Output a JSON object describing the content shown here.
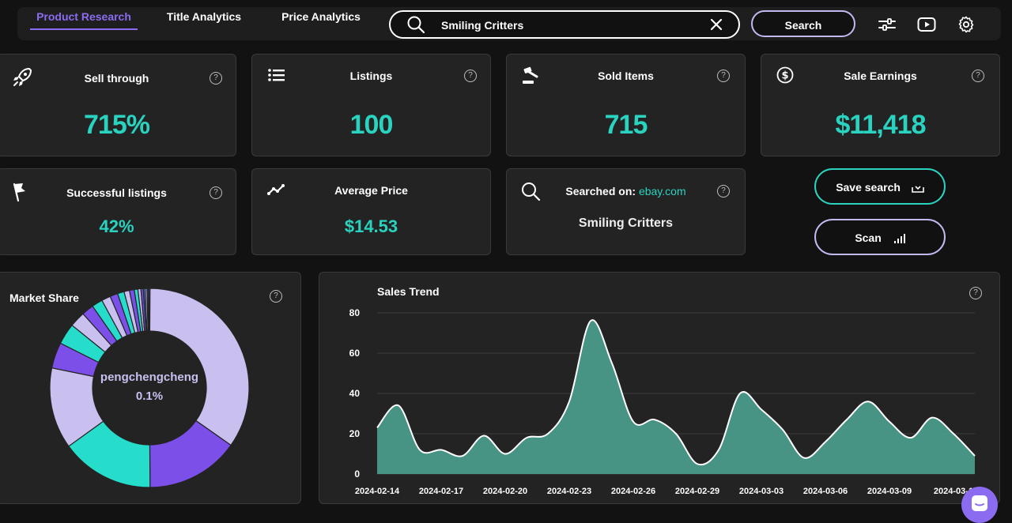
{
  "nav": {
    "tabs": [
      {
        "label": "Product Research",
        "active": true
      },
      {
        "label": "Title Analytics",
        "active": false
      },
      {
        "label": "Price Analytics",
        "active": false
      }
    ],
    "search_value": "Smiling Critters",
    "search_button": "Search"
  },
  "stats": {
    "sell_through": {
      "label": "Sell through",
      "value": "715%"
    },
    "listings": {
      "label": "Listings",
      "value": "100"
    },
    "sold_items": {
      "label": "Sold Items",
      "value": "715"
    },
    "sale_earnings": {
      "label": "Sale Earnings",
      "value": "$11,418"
    },
    "successful_listings": {
      "label": "Successful listings",
      "value": "42%"
    },
    "average_price": {
      "label": "Average Price",
      "value": "$14.53"
    },
    "searched_on": {
      "label": "Searched on:",
      "site": "ebay.com",
      "query": "Smiling Critters"
    }
  },
  "actions": {
    "save_search": "Save search",
    "scan": "Scan"
  },
  "market_share": {
    "title": "Market Share",
    "center_label": "pengchengcheng",
    "center_value": "0.1%"
  },
  "colors": {
    "accent": "#2ad3c0",
    "purple": "#8b6cf0",
    "lavender": "#c4b8ef",
    "area": "#4a9a8a"
  },
  "chart_data": [
    {
      "type": "pie",
      "title": "Market Share",
      "slices": [
        {
          "label": "pengchengcheng",
          "value": 0.1
        },
        {
          "label": "",
          "value": 35.5,
          "color": "#c9c0ef"
        },
        {
          "label": "",
          "value": 15.5,
          "color": "#7b4fe8"
        },
        {
          "label": "",
          "value": 15.5,
          "color": "#26dccb"
        },
        {
          "label": "",
          "value": 13.5,
          "color": "#c9c0ef"
        },
        {
          "label": "",
          "value": 4.3,
          "color": "#7b4fe8"
        },
        {
          "label": "",
          "value": 3.5,
          "color": "#26dccb"
        },
        {
          "label": "",
          "value": 2.6,
          "color": "#c9c0ef"
        },
        {
          "label": "",
          "value": 2.0,
          "color": "#7b4fe8"
        },
        {
          "label": "",
          "value": 1.8,
          "color": "#26dccb"
        },
        {
          "label": "",
          "value": 1.5,
          "color": "#c9c0ef"
        },
        {
          "label": "",
          "value": 1.3,
          "color": "#7b4fe8"
        },
        {
          "label": "",
          "value": 1.1,
          "color": "#26dccb"
        },
        {
          "label": "",
          "value": 0.9,
          "color": "#c9c0ef"
        },
        {
          "label": "",
          "value": 0.8,
          "color": "#7b4fe8"
        },
        {
          "label": "",
          "value": 0.6,
          "color": "#26dccb"
        },
        {
          "label": "",
          "value": 0.5,
          "color": "#c9c0ef"
        },
        {
          "label": "",
          "value": 0.4,
          "color": "#7b4fe8"
        },
        {
          "label": "",
          "value": 0.3,
          "color": "#3b7bd4"
        },
        {
          "label": "",
          "value": 0.3,
          "color": "#c9c0ef"
        },
        {
          "label": "",
          "value": 0.2,
          "color": "#7b4fe8"
        },
        {
          "label": "",
          "value": 0.2,
          "color": "#3b7bd4"
        }
      ]
    },
    {
      "type": "area",
      "title": "Sales Trend",
      "ylim": [
        0,
        80
      ],
      "yticks": [
        0,
        20,
        40,
        60,
        80
      ],
      "x_labels": [
        "2024-02-14",
        "2024-02-17",
        "2024-02-20",
        "2024-02-23",
        "2024-02-26",
        "2024-02-29",
        "2024-03-03",
        "2024-03-06",
        "2024-03-09",
        "2024-03-1"
      ],
      "x": [
        "2024-02-14",
        "2024-02-15",
        "2024-02-16",
        "2024-02-17",
        "2024-02-18",
        "2024-02-19",
        "2024-02-20",
        "2024-02-21",
        "2024-02-22",
        "2024-02-23",
        "2024-02-24",
        "2024-02-25",
        "2024-02-26",
        "2024-02-27",
        "2024-02-28",
        "2024-02-29",
        "2024-03-01",
        "2024-03-02",
        "2024-03-03",
        "2024-03-04",
        "2024-03-05",
        "2024-03-06",
        "2024-03-07",
        "2024-03-08",
        "2024-03-09",
        "2024-03-10",
        "2024-03-11",
        "2024-03-12",
        "2024-03-13"
      ],
      "values": [
        23,
        34,
        12,
        12,
        9,
        19,
        10,
        18,
        20,
        36,
        76,
        55,
        26,
        27,
        20,
        5,
        12,
        40,
        32,
        22,
        8,
        16,
        27,
        36,
        26,
        18,
        28,
        20,
        9
      ]
    }
  ]
}
